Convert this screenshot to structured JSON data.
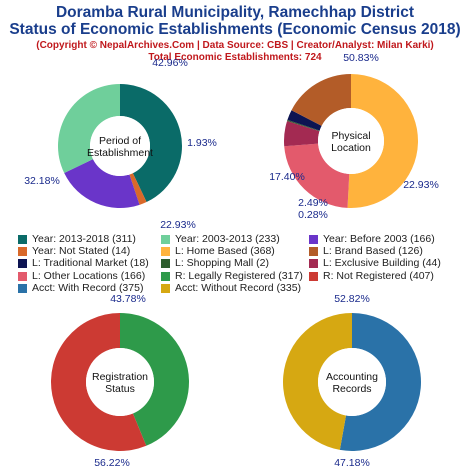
{
  "header": {
    "title_line1": "Doramba Rural Municipality, Ramechhap District",
    "title_line2": "Status of Economic Establishments (Economic Census 2018)",
    "copyright": "(Copyright © NepalArchives.Com | Data Source: CBS | Creator/Analyst: Milan Karki)",
    "total": "Total Economic Establishments: 724"
  },
  "chart_data": [
    {
      "type": "pie",
      "center_label": [
        "Period of",
        "Establishment"
      ],
      "slices": [
        {
          "name": "Year: 2013-2018",
          "value": 311,
          "pct_label": "42.96%",
          "color": "#0a6b68"
        },
        {
          "name": "Year: Not Stated",
          "value": 14,
          "pct_label": "1.93%",
          "color": "#d9692a"
        },
        {
          "name": "Year: Before 2003",
          "value": 166,
          "pct_label": "22.93%",
          "color": "#6a35c9"
        },
        {
          "name": "Year: 2003-2013",
          "value": 233,
          "pct_label": "32.18%",
          "color": "#6fcf9b"
        }
      ]
    },
    {
      "type": "pie",
      "center_label": [
        "Physical",
        "Location"
      ],
      "slices": [
        {
          "name": "L: Home Based",
          "value": 368,
          "pct_label": "50.83%",
          "color": "#ffb33d"
        },
        {
          "name": "L: Other Locations",
          "value": 166,
          "pct_label": "22.93%",
          "color": "#e35a6c"
        },
        {
          "name": "L: Exclusive Building",
          "value": 44,
          "pct_label": "",
          "color": "#a32a52"
        },
        {
          "name": "L: Shopping Mall",
          "value": 2,
          "pct_label": "0.28%",
          "color": "#2e5e2e"
        },
        {
          "name": "L: Traditional Market",
          "value": 18,
          "pct_label": "2.49%",
          "color": "#0d1452"
        },
        {
          "name": "L: Brand Based",
          "value": 126,
          "pct_label": "17.40%",
          "color": "#b35c28"
        }
      ]
    },
    {
      "type": "pie",
      "center_label": [
        "Registration",
        "Status"
      ],
      "slices": [
        {
          "name": "R: Legally Registered",
          "value": 317,
          "pct_label": "43.78%",
          "color": "#2e9a4a"
        },
        {
          "name": "R: Not Registered",
          "value": 407,
          "pct_label": "56.22%",
          "color": "#cc3a33"
        }
      ]
    },
    {
      "type": "pie",
      "center_label": [
        "Accounting",
        "Records"
      ],
      "slices": [
        {
          "name": "Acct: With Record",
          "value": 375,
          "pct_label": "52.82%",
          "color": "#2a72a8"
        },
        {
          "name": "Acct: Without Record",
          "value": 335,
          "pct_label": "47.18%",
          "color": "#d6a812"
        }
      ]
    }
  ],
  "legend": [
    {
      "text": "Year: 2013-2018 (311)",
      "color": "#0a6b68"
    },
    {
      "text": "Year: 2003-2013 (233)",
      "color": "#6fcf9b"
    },
    {
      "text": "Year: Before 2003 (166)",
      "color": "#6a35c9"
    },
    {
      "text": "Year: Not Stated (14)",
      "color": "#d9692a"
    },
    {
      "text": "L: Home Based (368)",
      "color": "#ffb33d"
    },
    {
      "text": "L: Brand Based (126)",
      "color": "#b35c28"
    },
    {
      "text": "L: Traditional Market (18)",
      "color": "#0d1452"
    },
    {
      "text": "L: Shopping Mall (2)",
      "color": "#2e5e2e"
    },
    {
      "text": "L: Exclusive Building (44)",
      "color": "#a32a52"
    },
    {
      "text": "L: Other Locations (166)",
      "color": "#e35a6c"
    },
    {
      "text": "R: Legally Registered (317)",
      "color": "#2e9a4a"
    },
    {
      "text": "R: Not Registered (407)",
      "color": "#cc3a33"
    },
    {
      "text": "Acct: With Record (375)",
      "color": "#2a72a8"
    },
    {
      "text": "Acct: Without Record (335)",
      "color": "#d6a812"
    }
  ]
}
